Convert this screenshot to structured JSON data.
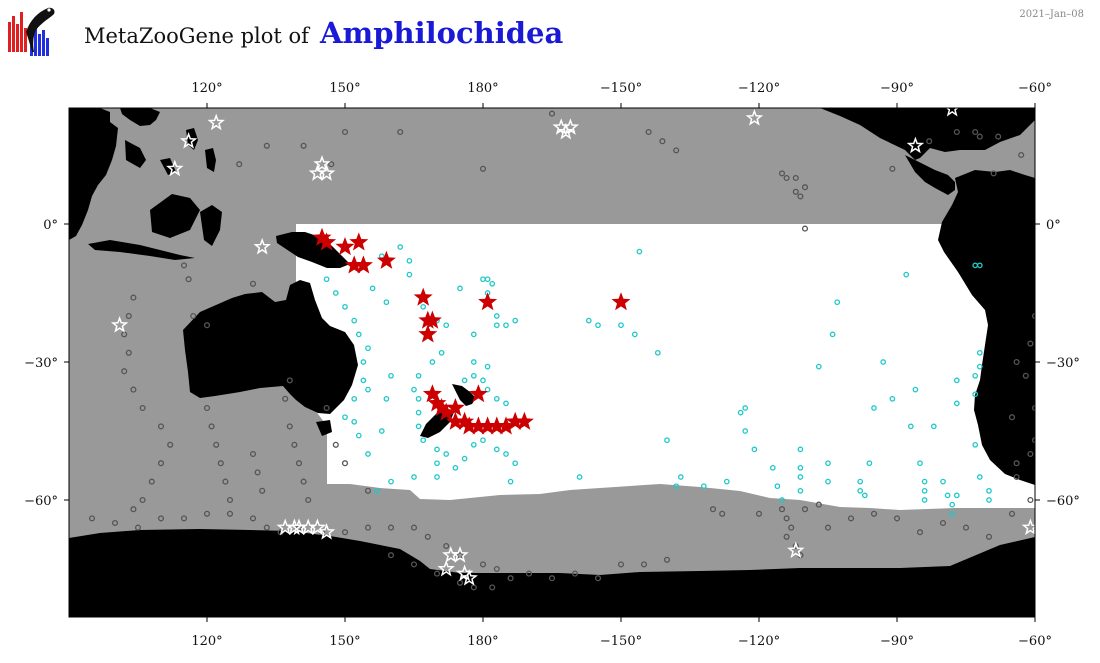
{
  "header": {
    "title_prefix": "MetaZooGene plot of",
    "taxon": "Amphilochidea",
    "date": "2021–Jan–08"
  },
  "map": {
    "projection": "equirectangular",
    "lon_range": [
      90,
      300
    ],
    "lat_range": [
      -85,
      25
    ],
    "x_ticks": [
      "120°",
      "150°",
      "180°",
      "−150°",
      "−120°",
      "−90°",
      "−60°"
    ],
    "y_ticks": [
      "0°",
      "−30°",
      "−60°"
    ],
    "colors": {
      "land": "#000000",
      "ocean_unsampled": "#999999",
      "study_region": "#ffffff",
      "presence_star": "#cc0000",
      "sample_ring": "#20c8c8",
      "other_sample_ring": "#555555",
      "other_star": "#ffffff"
    },
    "legend_meaning": {
      "presence_star": "presence of taxon",
      "sample_ring": "samples in region without taxon",
      "other_star": "presence outside region"
    },
    "presence_records": [
      [
        145,
        -3
      ],
      [
        146,
        -4
      ],
      [
        150,
        -5
      ],
      [
        153,
        -4
      ],
      [
        152,
        -9
      ],
      [
        154,
        -9
      ],
      [
        159,
        -8
      ],
      [
        167,
        -16
      ],
      [
        181,
        -17
      ],
      [
        168,
        -21
      ],
      [
        169,
        -21
      ],
      [
        168,
        -24
      ],
      [
        210,
        -17
      ],
      [
        169,
        -37
      ],
      [
        170,
        -39
      ],
      [
        171,
        -40
      ],
      [
        172,
        -41
      ],
      [
        174,
        -40
      ],
      [
        179,
        -37
      ],
      [
        174,
        -43
      ],
      [
        176,
        -43
      ],
      [
        177,
        -44
      ],
      [
        179,
        -44
      ],
      [
        181,
        -44
      ],
      [
        183,
        -44
      ],
      [
        185,
        -44
      ],
      [
        187,
        -43
      ],
      [
        189,
        -43
      ]
    ],
    "sample_records": [
      [
        162,
        -5
      ],
      [
        164,
        -8
      ],
      [
        158,
        -7
      ],
      [
        156,
        -14
      ],
      [
        159,
        -17
      ],
      [
        164,
        -11
      ],
      [
        167,
        -18
      ],
      [
        170,
        -21
      ],
      [
        172,
        -22
      ],
      [
        175,
        -14
      ],
      [
        178,
        -24
      ],
      [
        180,
        -12
      ],
      [
        181,
        -12
      ],
      [
        182,
        -13
      ],
      [
        181,
        -15
      ],
      [
        183,
        -20
      ],
      [
        183,
        -22
      ],
      [
        185,
        -22
      ],
      [
        187,
        -21
      ],
      [
        178,
        -30
      ],
      [
        181,
        -31
      ],
      [
        176,
        -34
      ],
      [
        178,
        -33
      ],
      [
        180,
        -34
      ],
      [
        181,
        -36
      ],
      [
        183,
        -38
      ],
      [
        185,
        -39
      ],
      [
        171,
        -28
      ],
      [
        169,
        -30
      ],
      [
        166,
        -33
      ],
      [
        165,
        -36
      ],
      [
        166,
        -38
      ],
      [
        166,
        -41
      ],
      [
        166,
        -44
      ],
      [
        167,
        -47
      ],
      [
        170,
        -49
      ],
      [
        172,
        -50
      ],
      [
        170,
        -52
      ],
      [
        174,
        -53
      ],
      [
        176,
        -51
      ],
      [
        178,
        -48
      ],
      [
        180,
        -47
      ],
      [
        183,
        -49
      ],
      [
        185,
        -50
      ],
      [
        187,
        -52
      ],
      [
        186,
        -56
      ],
      [
        170,
        -55
      ],
      [
        165,
        -55
      ],
      [
        160,
        -56
      ],
      [
        157,
        -58
      ],
      [
        155,
        -50
      ],
      [
        158,
        -45
      ],
      [
        159,
        -38
      ],
      [
        160,
        -33
      ],
      [
        155,
        -27
      ],
      [
        153,
        -24
      ],
      [
        152,
        -21
      ],
      [
        150,
        -18
      ],
      [
        148,
        -15
      ],
      [
        146,
        -12
      ],
      [
        154,
        -30
      ],
      [
        154,
        -34
      ],
      [
        155,
        -36
      ],
      [
        152,
        -38
      ],
      [
        150,
        -42
      ],
      [
        152,
        -43
      ],
      [
        153,
        -46
      ],
      [
        201,
        -55
      ],
      [
        210,
        -22
      ],
      [
        203,
        -21
      ],
      [
        205,
        -22
      ],
      [
        213,
        -24
      ],
      [
        218,
        -28
      ],
      [
        220,
        -47
      ],
      [
        222,
        -57
      ],
      [
        223,
        -55
      ],
      [
        228,
        -57
      ],
      [
        233,
        -56
      ],
      [
        237,
        -45
      ],
      [
        236,
        -41
      ],
      [
        237,
        -40
      ],
      [
        239,
        -49
      ],
      [
        243,
        -53
      ],
      [
        244,
        -57
      ],
      [
        245,
        -60
      ],
      [
        249,
        -49
      ],
      [
        249,
        -55
      ],
      [
        249,
        -53
      ],
      [
        249,
        -58
      ],
      [
        255,
        -52
      ],
      [
        255,
        -56
      ],
      [
        262,
        -56
      ],
      [
        262,
        -58
      ],
      [
        263,
        -59
      ],
      [
        264,
        -52
      ],
      [
        265,
        -40
      ],
      [
        267,
        -30
      ],
      [
        269,
        -38
      ],
      [
        272,
        -11
      ],
      [
        274,
        -36
      ],
      [
        273,
        -44
      ],
      [
        275,
        -52
      ],
      [
        276,
        -56
      ],
      [
        276,
        -58
      ],
      [
        276,
        -60
      ],
      [
        278,
        -44
      ],
      [
        280,
        -56
      ],
      [
        281,
        -59
      ],
      [
        282,
        -61
      ],
      [
        282,
        -63
      ],
      [
        283,
        -39
      ],
      [
        283,
        -34
      ],
      [
        283,
        -59
      ],
      [
        287,
        -33
      ],
      [
        288,
        -28
      ],
      [
        287,
        -37
      ],
      [
        287,
        -48
      ],
      [
        288,
        -55
      ],
      [
        290,
        -60
      ],
      [
        290,
        -58
      ],
      [
        288,
        -9
      ],
      [
        287,
        -9
      ],
      [
        288,
        -31
      ],
      [
        257,
        -17
      ],
      [
        256,
        -24
      ],
      [
        253,
        -31
      ],
      [
        214,
        -6
      ]
    ],
    "other_samples": [
      [
        127,
        13
      ],
      [
        133,
        17
      ],
      [
        141,
        17
      ],
      [
        147,
        13
      ],
      [
        150,
        20
      ],
      [
        162,
        20
      ],
      [
        180,
        12
      ],
      [
        195,
        24
      ],
      [
        216,
        20
      ],
      [
        219,
        18
      ],
      [
        222,
        16
      ],
      [
        283,
        20
      ],
      [
        287,
        20
      ],
      [
        292,
        19
      ],
      [
        297,
        15
      ],
      [
        291,
        11
      ],
      [
        269,
        12
      ],
      [
        277,
        18
      ],
      [
        288,
        19
      ],
      [
        245,
        11
      ],
      [
        246,
        10
      ],
      [
        248,
        10
      ],
      [
        248,
        7
      ],
      [
        249,
        6
      ],
      [
        250,
        8
      ],
      [
        250,
        -1
      ],
      [
        104,
        -16
      ],
      [
        103,
        -20
      ],
      [
        102,
        -24
      ],
      [
        103,
        -28
      ],
      [
        102,
        -32
      ],
      [
        104,
        -36
      ],
      [
        106,
        -40
      ],
      [
        110,
        -44
      ],
      [
        112,
        -48
      ],
      [
        110,
        -52
      ],
      [
        108,
        -56
      ],
      [
        106,
        -60
      ],
      [
        104,
        -62
      ],
      [
        120,
        -40
      ],
      [
        121,
        -44
      ],
      [
        122,
        -48
      ],
      [
        123,
        -52
      ],
      [
        124,
        -56
      ],
      [
        125,
        -60
      ],
      [
        130,
        -50
      ],
      [
        131,
        -54
      ],
      [
        132,
        -58
      ],
      [
        138,
        -44
      ],
      [
        139,
        -48
      ],
      [
        140,
        -52
      ],
      [
        141,
        -56
      ],
      [
        142,
        -60
      ],
      [
        115,
        -9
      ],
      [
        116,
        -12
      ],
      [
        117,
        -20
      ],
      [
        120,
        -22
      ],
      [
        130,
        -13
      ],
      [
        137,
        -38
      ],
      [
        138,
        -34
      ],
      [
        146,
        -40
      ],
      [
        148,
        -48
      ],
      [
        150,
        -52
      ],
      [
        155,
        -58
      ],
      [
        230,
        -62
      ],
      [
        232,
        -63
      ],
      [
        240,
        -63
      ],
      [
        250,
        -62
      ],
      [
        253,
        -61
      ],
      [
        255,
        -66
      ],
      [
        260,
        -64
      ],
      [
        265,
        -63
      ],
      [
        270,
        -64
      ],
      [
        275,
        -67
      ],
      [
        280,
        -65
      ],
      [
        285,
        -66
      ],
      [
        290,
        -68
      ],
      [
        295,
        -63
      ],
      [
        299,
        -60
      ],
      [
        296,
        -55
      ],
      [
        296,
        -52
      ],
      [
        299,
        -50
      ],
      [
        300,
        -47
      ],
      [
        295,
        -42
      ],
      [
        300,
        -40
      ],
      [
        298,
        -33
      ],
      [
        296,
        -30
      ],
      [
        299,
        -26
      ],
      [
        300,
        -20
      ],
      [
        165,
        -66
      ],
      [
        168,
        -68
      ],
      [
        172,
        -70
      ],
      [
        175,
        -72
      ],
      [
        180,
        -74
      ],
      [
        183,
        -75
      ],
      [
        186,
        -77
      ],
      [
        190,
        -76
      ],
      [
        195,
        -77
      ],
      [
        200,
        -76
      ],
      [
        205,
        -77
      ],
      [
        210,
        -74
      ],
      [
        215,
        -74
      ],
      [
        220,
        -73
      ],
      [
        160,
        -72
      ],
      [
        165,
        -74
      ],
      [
        170,
        -76
      ],
      [
        175,
        -78
      ],
      [
        178,
        -79
      ],
      [
        182,
        -79
      ],
      [
        130,
        -64
      ],
      [
        133,
        -66
      ],
      [
        136,
        -67
      ],
      [
        140,
        -66
      ],
      [
        145,
        -67
      ],
      [
        150,
        -67
      ],
      [
        155,
        -66
      ],
      [
        160,
        -66
      ],
      [
        95,
        -64
      ],
      [
        100,
        -65
      ],
      [
        105,
        -66
      ],
      [
        110,
        -64
      ],
      [
        115,
        -64
      ],
      [
        120,
        -63
      ],
      [
        125,
        -63
      ],
      [
        245,
        -62
      ],
      [
        246,
        -64
      ],
      [
        247,
        -66
      ],
      [
        246,
        -68
      ],
      [
        248,
        -70
      ],
      [
        249,
        -72
      ]
    ],
    "other_stars": [
      [
        122,
        22
      ],
      [
        116,
        18
      ],
      [
        113,
        12
      ],
      [
        101,
        -22
      ],
      [
        132,
        -5
      ],
      [
        144,
        11
      ],
      [
        145,
        13
      ],
      [
        146,
        11
      ],
      [
        197,
        21
      ],
      [
        199,
        21
      ],
      [
        198,
        20
      ],
      [
        239,
        23
      ],
      [
        274,
        17
      ],
      [
        282,
        25
      ],
      [
        137,
        -66
      ],
      [
        139,
        -66
      ],
      [
        140,
        -66
      ],
      [
        142,
        -66
      ],
      [
        144,
        -66
      ],
      [
        146,
        -67
      ],
      [
        173,
        -72
      ],
      [
        175,
        -72
      ],
      [
        172,
        -75
      ],
      [
        176,
        -76
      ],
      [
        177,
        -77
      ],
      [
        248,
        -71
      ],
      [
        299,
        -66
      ]
    ]
  }
}
